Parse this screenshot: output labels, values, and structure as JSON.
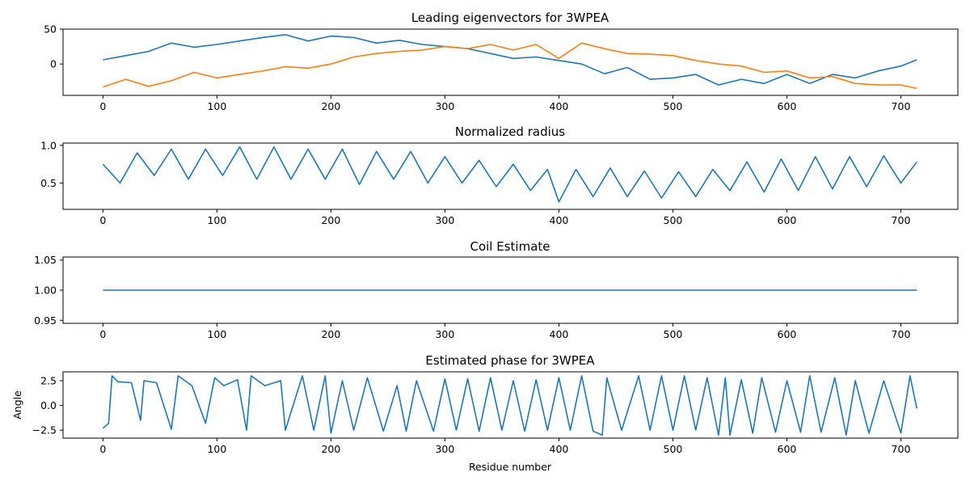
{
  "colors": {
    "blue": "#1f77b4",
    "orange": "#ff7f0e",
    "frame": "#000000",
    "background": "#ffffff"
  },
  "chart_data": [
    {
      "type": "line",
      "title": "Leading eigenvectors for 3WPEA",
      "xlabel": "",
      "ylabel": "",
      "xlim": [
        -35,
        750
      ],
      "ylim": [
        -45,
        50
      ],
      "xticks": [
        0,
        100,
        200,
        300,
        400,
        500,
        600,
        700
      ],
      "yticks": [
        -50,
        0,
        50
      ],
      "ytick_labels_shown": [
        "0",
        "50"
      ],
      "grid": false,
      "series": [
        {
          "color": "#1f77b4",
          "x": [
            0,
            20,
            40,
            60,
            80,
            100,
            120,
            140,
            160,
            180,
            200,
            220,
            240,
            260,
            280,
            300,
            320,
            340,
            360,
            380,
            400,
            420,
            440,
            460,
            480,
            500,
            520,
            540,
            560,
            580,
            600,
            620,
            640,
            660,
            680,
            700,
            714
          ],
          "y": [
            6,
            12,
            18,
            30,
            24,
            28,
            33,
            38,
            42,
            33,
            40,
            38,
            30,
            34,
            28,
            25,
            22,
            15,
            8,
            10,
            5,
            0,
            -14,
            -5,
            -22,
            -20,
            -15,
            -30,
            -22,
            -28,
            -15,
            -28,
            -15,
            -20,
            -10,
            -3,
            6
          ]
        },
        {
          "color": "#ff7f0e",
          "x": [
            0,
            20,
            40,
            60,
            80,
            100,
            120,
            140,
            160,
            180,
            200,
            220,
            240,
            260,
            280,
            300,
            320,
            340,
            360,
            380,
            400,
            420,
            440,
            460,
            480,
            500,
            520,
            540,
            560,
            580,
            600,
            620,
            640,
            660,
            680,
            700,
            714
          ],
          "y": [
            -33,
            -22,
            -32,
            -24,
            -12,
            -20,
            -15,
            -10,
            -4,
            -6,
            0,
            10,
            15,
            18,
            20,
            25,
            22,
            28,
            20,
            28,
            8,
            30,
            22,
            15,
            14,
            12,
            5,
            0,
            -3,
            -12,
            -10,
            -20,
            -18,
            -28,
            -30,
            -30,
            -35
          ]
        }
      ]
    },
    {
      "type": "line",
      "title": "Normalized radius",
      "xlabel": "",
      "ylabel": "",
      "xlim": [
        -35,
        750
      ],
      "ylim": [
        0.15,
        1.03
      ],
      "xticks": [
        0,
        100,
        200,
        300,
        400,
        500,
        600,
        700
      ],
      "yticks": [
        0.5,
        1.0
      ],
      "ytick_labels_shown": [
        "0.5",
        "1.0"
      ],
      "grid": false,
      "series": [
        {
          "color": "#1f77b4",
          "x": [
            0,
            15,
            30,
            45,
            60,
            75,
            90,
            105,
            120,
            135,
            150,
            165,
            180,
            195,
            210,
            225,
            240,
            255,
            270,
            285,
            300,
            315,
            330,
            345,
            360,
            375,
            390,
            400,
            415,
            430,
            445,
            460,
            475,
            490,
            505,
            520,
            535,
            550,
            565,
            580,
            595,
            610,
            625,
            640,
            655,
            670,
            685,
            700,
            714
          ],
          "y": [
            0.75,
            0.5,
            0.9,
            0.6,
            0.95,
            0.55,
            0.95,
            0.6,
            0.98,
            0.55,
            0.98,
            0.55,
            0.95,
            0.55,
            0.95,
            0.48,
            0.92,
            0.55,
            0.92,
            0.5,
            0.85,
            0.5,
            0.8,
            0.45,
            0.75,
            0.4,
            0.68,
            0.25,
            0.68,
            0.32,
            0.7,
            0.32,
            0.66,
            0.3,
            0.65,
            0.32,
            0.68,
            0.4,
            0.78,
            0.38,
            0.82,
            0.4,
            0.85,
            0.42,
            0.85,
            0.45,
            0.86,
            0.5,
            0.78
          ]
        }
      ]
    },
    {
      "type": "line",
      "title": "Coil Estimate",
      "xlabel": "",
      "ylabel": "",
      "xlim": [
        -35,
        750
      ],
      "ylim": [
        0.945,
        1.055
      ],
      "xticks": [
        0,
        100,
        200,
        300,
        400,
        500,
        600,
        700
      ],
      "yticks": [
        0.95,
        1.0,
        1.05
      ],
      "ytick_labels_shown": [
        "0.95",
        "1.00",
        "1.05"
      ],
      "grid": false,
      "series": [
        {
          "color": "#1f77b4",
          "x": [
            0,
            714
          ],
          "y": [
            1.0,
            1.0
          ]
        }
      ]
    },
    {
      "type": "line",
      "title": "Estimated phase for 3WPEA",
      "xlabel": "Residue number",
      "ylabel": "Angle",
      "xlim": [
        -35,
        750
      ],
      "ylim": [
        -3.3,
        3.4
      ],
      "xticks": [
        0,
        100,
        200,
        300,
        400,
        500,
        600,
        700
      ],
      "yticks": [
        -2.5,
        0.0,
        2.5
      ],
      "ytick_labels_shown": [
        "−2.5",
        "0.0",
        "2.5"
      ],
      "grid": false,
      "series": [
        {
          "color": "#1f77b4",
          "x": [
            0,
            5,
            8,
            13,
            25,
            33,
            36,
            47,
            60,
            66,
            78,
            90,
            98,
            106,
            118,
            126,
            130,
            142,
            156,
            160,
            175,
            185,
            195,
            200,
            210,
            220,
            232,
            246,
            258,
            266,
            275,
            290,
            300,
            310,
            320,
            330,
            340,
            350,
            360,
            370,
            380,
            390,
            400,
            410,
            420,
            430,
            438,
            442,
            455,
            470,
            480,
            490,
            500,
            510,
            520,
            530,
            540,
            546,
            550,
            560,
            570,
            578,
            590,
            600,
            612,
            620,
            630,
            642,
            652,
            660,
            672,
            685,
            700,
            708,
            714
          ],
          "y": [
            -2.3,
            -1.8,
            3.0,
            2.4,
            2.3,
            -1.5,
            2.5,
            2.3,
            -2.4,
            3.0,
            2.0,
            -1.8,
            2.8,
            2.0,
            2.6,
            -2.5,
            3.0,
            2.0,
            2.5,
            -2.5,
            3.0,
            -2.5,
            3.0,
            -2.8,
            2.5,
            -2.5,
            2.8,
            -2.6,
            2.0,
            -2.6,
            2.5,
            -2.6,
            2.7,
            -2.5,
            2.7,
            -2.6,
            2.8,
            -2.5,
            2.5,
            -2.6,
            2.6,
            -2.5,
            2.8,
            -2.5,
            3.0,
            -2.6,
            -3.0,
            2.8,
            -2.5,
            3.0,
            -2.5,
            3.0,
            -2.5,
            3.0,
            -2.5,
            2.8,
            -3.0,
            2.8,
            -3.0,
            2.6,
            -2.8,
            2.8,
            -2.7,
            2.5,
            -2.7,
            3.0,
            -2.7,
            2.8,
            -3.0,
            2.5,
            -2.8,
            2.5,
            -2.8,
            3.0,
            -0.3
          ]
        }
      ]
    }
  ]
}
